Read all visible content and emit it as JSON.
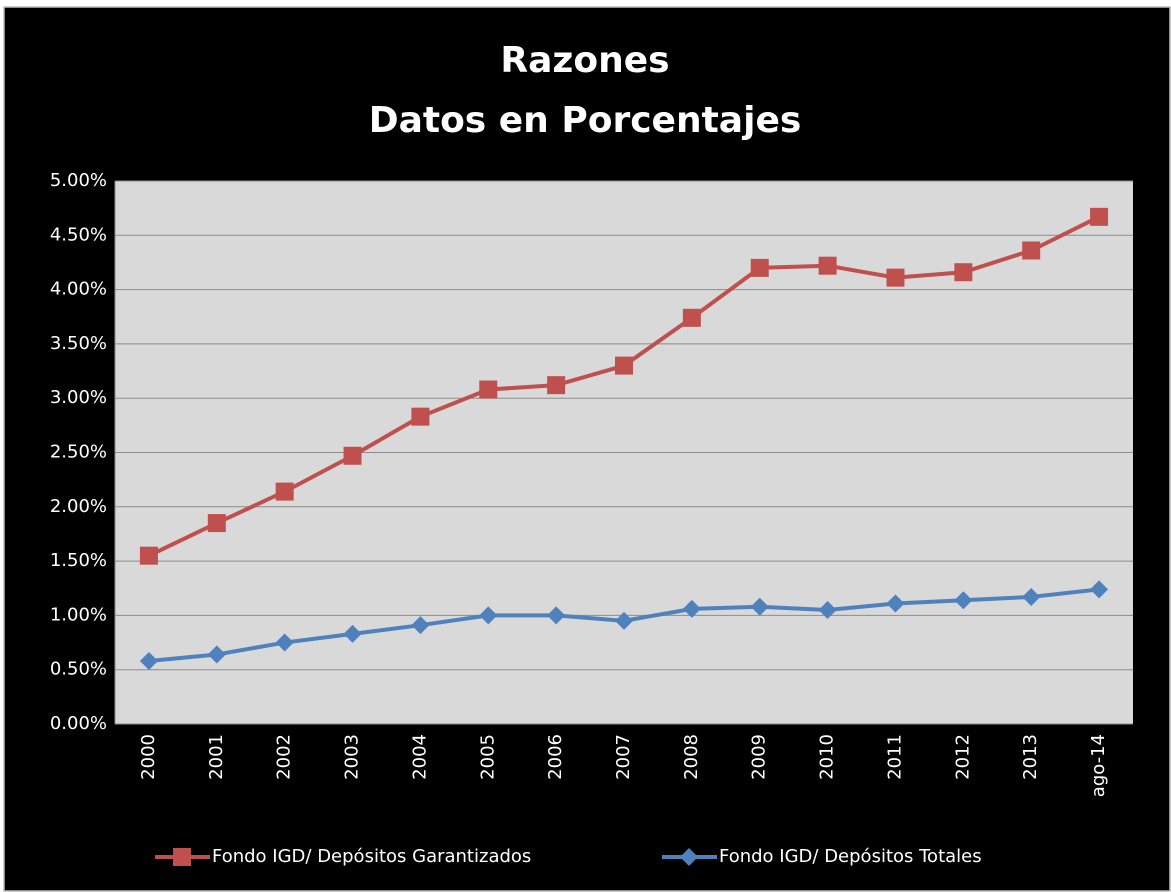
{
  "chart_data": {
    "type": "line",
    "title": "Razones",
    "subtitle": "Datos en Porcentajes",
    "categories": [
      "2000",
      "2001",
      "2002",
      "2003",
      "2004",
      "2005",
      "2006",
      "2007",
      "2008",
      "2009",
      "2010",
      "2011",
      "2012",
      "2013",
      "ago-14"
    ],
    "series": [
      {
        "name": "Fondo IGD/ Depósitos Garantizados",
        "color": "#c0504d",
        "marker": "square",
        "values": [
          1.55,
          1.85,
          2.14,
          2.47,
          2.83,
          3.08,
          3.12,
          3.3,
          3.74,
          4.2,
          4.22,
          4.11,
          4.16,
          4.36,
          4.67
        ]
      },
      {
        "name": "Fondo IGD/ Depósitos Totales",
        "color": "#4f81bd",
        "marker": "diamond",
        "values": [
          0.58,
          0.64,
          0.75,
          0.83,
          0.91,
          1.0,
          1.0,
          0.95,
          1.06,
          1.08,
          1.05,
          1.11,
          1.14,
          1.17,
          1.24
        ]
      }
    ],
    "ylim": [
      0,
      5
    ],
    "yticks": [
      {
        "value": 0,
        "label": "0.00%"
      },
      {
        "value": 0.5,
        "label": "0.50%"
      },
      {
        "value": 1,
        "label": "1.00%"
      },
      {
        "value": 1.5,
        "label": "1.50%"
      },
      {
        "value": 2,
        "label": "2.00%"
      },
      {
        "value": 2.5,
        "label": "2.50%"
      },
      {
        "value": 3,
        "label": "3.00%"
      },
      {
        "value": 3.5,
        "label": "3.50%"
      },
      {
        "value": 4,
        "label": "4.00%"
      },
      {
        "value": 4.5,
        "label": "4.50%"
      },
      {
        "value": 5,
        "label": "5.00%"
      }
    ],
    "grid": true,
    "legend": "bottom"
  }
}
